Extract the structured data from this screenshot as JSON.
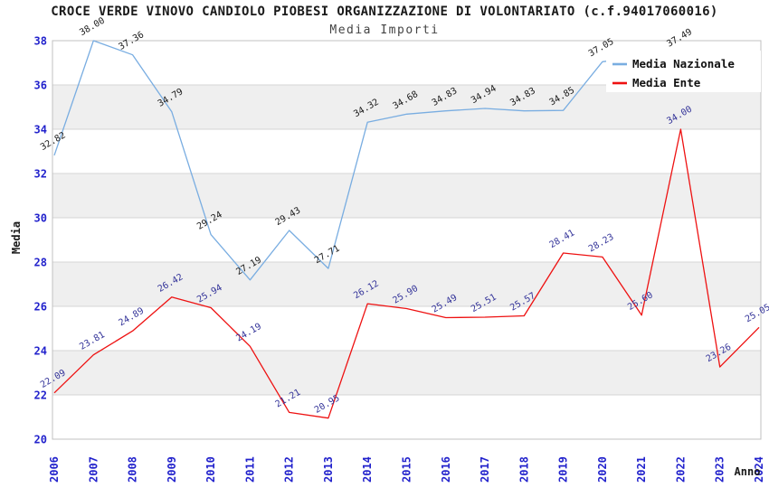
{
  "header": {
    "title": "CROCE VERDE VINOVO CANDIOLO PIOBESI ORGANIZZAZIONE DI VOLONTARIATO (c.f.94017060016)",
    "subtitle": "Media Importi"
  },
  "chart_data": {
    "type": "line",
    "title": "CROCE VERDE VINOVO CANDIOLO PIOBESI ORGANIZZAZIONE DI VOLONTARIATO (c.f.94017060016)",
    "subtitle": "Media Importi",
    "xlabel": "Anno",
    "ylabel": "Media",
    "categories": [
      "2006",
      "2007",
      "2008",
      "2009",
      "2010",
      "2011",
      "2012",
      "2013",
      "2014",
      "2015",
      "2016",
      "2017",
      "2018",
      "2019",
      "2020",
      "2021",
      "2022",
      "2023",
      "2024"
    ],
    "ylim": [
      20,
      38
    ],
    "ytick_step": 2,
    "grid": true,
    "alternating_bands": true,
    "legend_position": "top-right",
    "series": [
      {
        "name": "Media Nazionale",
        "color": "#79ade1",
        "label_color": "#1a1a1a",
        "values": [
          32.82,
          38.0,
          37.36,
          34.79,
          29.24,
          27.19,
          29.43,
          27.71,
          34.32,
          34.68,
          34.83,
          34.94,
          34.83,
          34.85,
          37.05,
          null,
          37.49,
          null,
          null
        ]
      },
      {
        "name": "Media Ente",
        "color": "#ee1111",
        "label_color": "#333399",
        "values": [
          22.09,
          23.81,
          24.89,
          26.42,
          25.94,
          24.19,
          21.21,
          20.95,
          26.12,
          25.9,
          25.49,
          25.51,
          25.57,
          28.41,
          28.23,
          25.6,
          34.0,
          23.26,
          25.05
        ]
      }
    ],
    "style": {
      "tick_label_color": "#2222cc",
      "axis_title_color": "#1a1a1a",
      "band_color": "#efefef",
      "grid_color": "#d4d4d4",
      "border_color": "#c0c0c0",
      "legend_bg": "#ffffff",
      "legend_text_color": "#111111"
    }
  }
}
